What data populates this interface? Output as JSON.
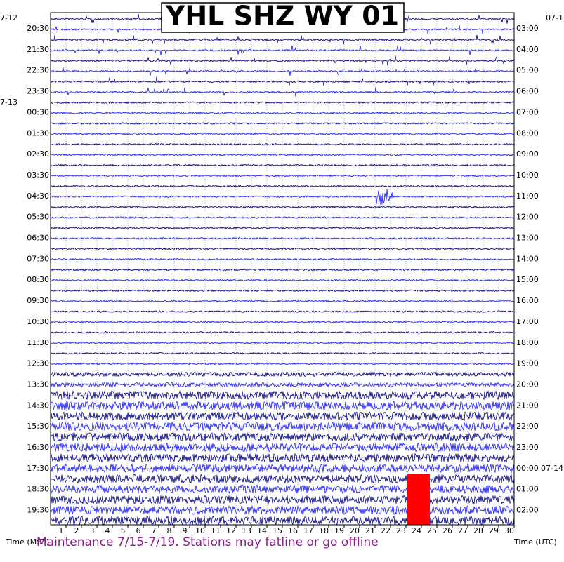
{
  "title": "YHL SHZ WY 01",
  "left_times": [
    "20:30",
    "21:30",
    "22:30",
    "23:30",
    "00:30",
    "01:30",
    "02:30",
    "03:30",
    "04:30",
    "05:30",
    "06:30",
    "07:30",
    "08:30",
    "09:30",
    "10:30",
    "11:30",
    "12:30",
    "13:30",
    "14:30",
    "15:30",
    "16:30",
    "17:30",
    "18:30",
    "19:30"
  ],
  "right_times": [
    "03:00",
    "04:00",
    "05:00",
    "06:00",
    "07:00",
    "08:00",
    "09:00",
    "10:00",
    "11:00",
    "12:00",
    "13:00",
    "14:00",
    "15:00",
    "16:00",
    "17:00",
    "18:00",
    "19:00",
    "20:00",
    "21:00",
    "22:00",
    "23:00",
    "00:00",
    "01:00",
    "02:00"
  ],
  "left_dates": [
    "7-12",
    "7-13"
  ],
  "right_dates": [
    "07-1",
    "07-14"
  ],
  "minutes": [
    "1",
    "2",
    "3",
    "4",
    "5",
    "6",
    "7",
    "8",
    "9",
    "10",
    "11",
    "12",
    "13",
    "14",
    "15",
    "16",
    "17",
    "18",
    "19",
    "20",
    "21",
    "22",
    "23",
    "24",
    "25",
    "26",
    "27",
    "28",
    "29",
    "30"
  ],
  "x_label_left": "Time (MST)",
  "x_label_right": "Time (UTC)",
  "notice": "Maintenance 7/15-7/19.   Stations may fatline or go offline"
}
